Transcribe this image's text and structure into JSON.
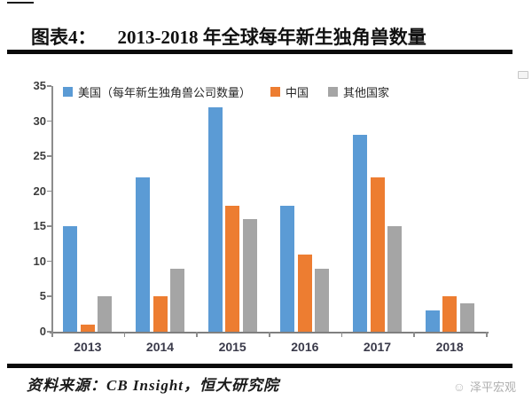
{
  "header": {
    "figure_label": "图表4：",
    "title": "2013-2018 年全球每年新生独角兽数量"
  },
  "chart_data": {
    "type": "bar",
    "title": "2013-2018 年全球每年新生独角兽数量",
    "categories": [
      "2013",
      "2014",
      "2015",
      "2016",
      "2017",
      "2018"
    ],
    "series": [
      {
        "key": "us",
        "name": "美国（每年新生独角兽公司数量）",
        "color": "#5B9BD5",
        "values": [
          15,
          22,
          32,
          18,
          28,
          3
        ]
      },
      {
        "key": "china",
        "name": "中国",
        "color": "#ED7D31",
        "values": [
          1,
          5,
          18,
          11,
          22,
          5
        ]
      },
      {
        "key": "others",
        "name": "其他国家",
        "color": "#A5A5A5",
        "values": [
          5,
          9,
          16,
          9,
          15,
          4
        ]
      }
    ],
    "xlabel": "",
    "ylabel": "",
    "ylim": [
      0,
      35
    ],
    "yticks": [
      0,
      5,
      10,
      15,
      20,
      25,
      30,
      35
    ],
    "grid": false,
    "legend_position": "top-inside",
    "axis_color": "#8c8c8c"
  },
  "footer": {
    "source": "资料来源：CB Insight，恒大研究院",
    "watermark": "泽平宏观",
    "watermark_icon": "☺"
  }
}
